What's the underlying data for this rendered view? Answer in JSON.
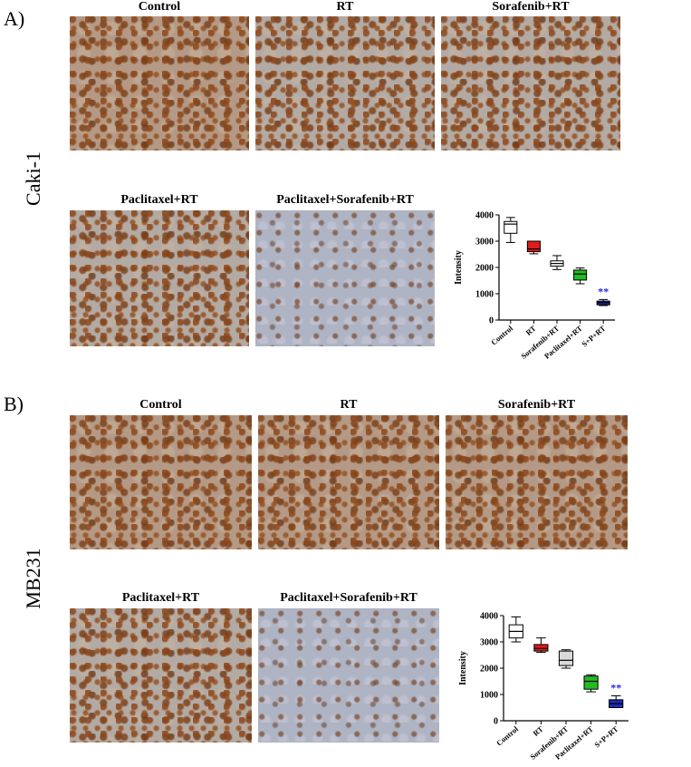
{
  "panel_a": {
    "letter": "A)",
    "cell_line": "Caki-1",
    "images": [
      {
        "label": "Control",
        "stain": "dense"
      },
      {
        "label": "RT",
        "stain": "medium"
      },
      {
        "label": "Sorafenib+RT",
        "stain": "medium"
      },
      {
        "label": "Paclitaxel+RT",
        "stain": "medium"
      },
      {
        "label": "Paclitaxel+Sorafenib+RT",
        "stain": "light"
      }
    ]
  },
  "panel_b": {
    "letter": "B)",
    "cell_line": "MB231",
    "images": [
      {
        "label": "Control",
        "stain": "dense"
      },
      {
        "label": "RT",
        "stain": "dense"
      },
      {
        "label": "Sorafenib+RT",
        "stain": "dense"
      },
      {
        "label": "Paclitaxel+RT",
        "stain": "medium"
      },
      {
        "label": "Paclitaxel+Sorafenib+RT",
        "stain": "light"
      }
    ]
  },
  "chart_data": [
    {
      "type": "boxplot",
      "ylabel": "Intensity",
      "ylim": [
        0,
        4000
      ],
      "yticks": [
        "0",
        "1000",
        "2000",
        "3000",
        "4000"
      ],
      "categories": [
        "Control",
        "RT",
        "Sorafenib+RT",
        "Paclitaxel+RT",
        "S+P+RT"
      ],
      "colors": [
        "#ffffff",
        "#dd1c1c",
        "#ffffff",
        "#22bb22",
        "#1a2bb5"
      ],
      "boxes": [
        {
          "min": 2950,
          "q1": 3300,
          "median": 3650,
          "q3": 3750,
          "max": 3900
        },
        {
          "min": 2520,
          "q1": 2600,
          "median": 2700,
          "q3": 3000,
          "max": 3000
        },
        {
          "min": 1920,
          "q1": 2050,
          "median": 2150,
          "q3": 2250,
          "max": 2450
        },
        {
          "min": 1380,
          "q1": 1520,
          "median": 1750,
          "q3": 1900,
          "max": 1980
        },
        {
          "min": 550,
          "q1": 580,
          "median": 660,
          "q3": 720,
          "max": 780
        }
      ],
      "annotation": {
        "text": "**",
        "category_index": 4,
        "color": "#2a2ad8"
      }
    },
    {
      "type": "boxplot",
      "ylabel": "Intensity",
      "ylim": [
        0,
        4000
      ],
      "yticks": [
        "0",
        "1000",
        "2000",
        "3000",
        "4000"
      ],
      "categories": [
        "Control",
        "RT",
        "Sorafenib+RT",
        "Paclitaxel+RT",
        "S+P+RT"
      ],
      "colors": [
        "#ffffff",
        "#dd1c1c",
        "#d9d9d9",
        "#22bb22",
        "#1a2bb5"
      ],
      "boxes": [
        {
          "min": 3000,
          "q1": 3150,
          "median": 3400,
          "q3": 3650,
          "max": 3950
        },
        {
          "min": 2600,
          "q1": 2650,
          "median": 2750,
          "q3": 2900,
          "max": 3150
        },
        {
          "min": 2000,
          "q1": 2100,
          "median": 2300,
          "q3": 2650,
          "max": 2700
        },
        {
          "min": 1100,
          "q1": 1200,
          "median": 1500,
          "q3": 1700,
          "max": 1750
        },
        {
          "min": 500,
          "q1": 500,
          "median": 650,
          "q3": 800,
          "max": 950
        }
      ],
      "annotation": {
        "text": "**",
        "category_index": 4,
        "color": "#2a2ad8"
      }
    }
  ]
}
